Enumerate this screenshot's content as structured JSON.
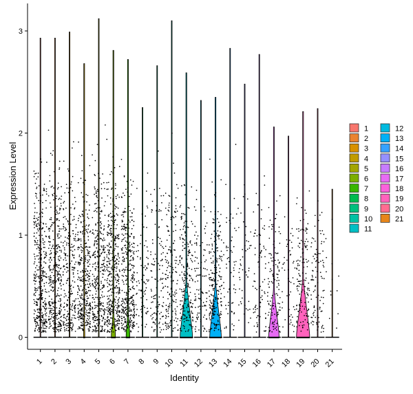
{
  "chart_data": {
    "type": "violin",
    "title": "",
    "xlabel": "Identity",
    "ylabel": "Expression Level",
    "ylim": [
      -0.15,
      3.1
    ],
    "yticks": [
      0,
      1,
      2,
      3
    ],
    "grid": false,
    "legend_position": "right",
    "categories": [
      "1",
      "2",
      "3",
      "4",
      "5",
      "6",
      "7",
      "8",
      "9",
      "10",
      "11",
      "12",
      "13",
      "14",
      "15",
      "16",
      "17",
      "18",
      "19",
      "20",
      "21"
    ],
    "colors": [
      "#F8766D",
      "#EA8331",
      "#D89000",
      "#C09B00",
      "#A3A500",
      "#7CAE00",
      "#39B600",
      "#00BB4E",
      "#00BF7D",
      "#00C1A3",
      "#00BFC4",
      "#00BAE0",
      "#00B0F6",
      "#35A2FF",
      "#9590FF",
      "#C77CFF",
      "#E76BF3",
      "#FA62DB",
      "#FF62BC",
      "#FF6C91",
      "#E7861B"
    ],
    "max_values": [
      2.93,
      2.93,
      2.99,
      2.68,
      3.12,
      2.81,
      2.72,
      2.25,
      2.66,
      3.1,
      2.59,
      2.32,
      2.35,
      2.83,
      2.48,
      2.77,
      2.06,
      1.97,
      2.21,
      2.24,
      1.45
    ],
    "nonzero_fraction": [
      0.92,
      0.88,
      0.6,
      0.88,
      0.82,
      0.94,
      0.9,
      0.2,
      0.3,
      0.4,
      0.5,
      0.25,
      0.55,
      0.15,
      0.12,
      0.2,
      0.3,
      0.12,
      0.35,
      0.25,
      0.03
    ],
    "violin_bulge": [
      0.0,
      0.0,
      0.0,
      0.03,
      0.0,
      0.1,
      0.09,
      0.0,
      0.0,
      0.0,
      0.3,
      0.0,
      0.28,
      0.0,
      0.0,
      0.0,
      0.25,
      0.0,
      0.32,
      0.0,
      0.0
    ]
  }
}
